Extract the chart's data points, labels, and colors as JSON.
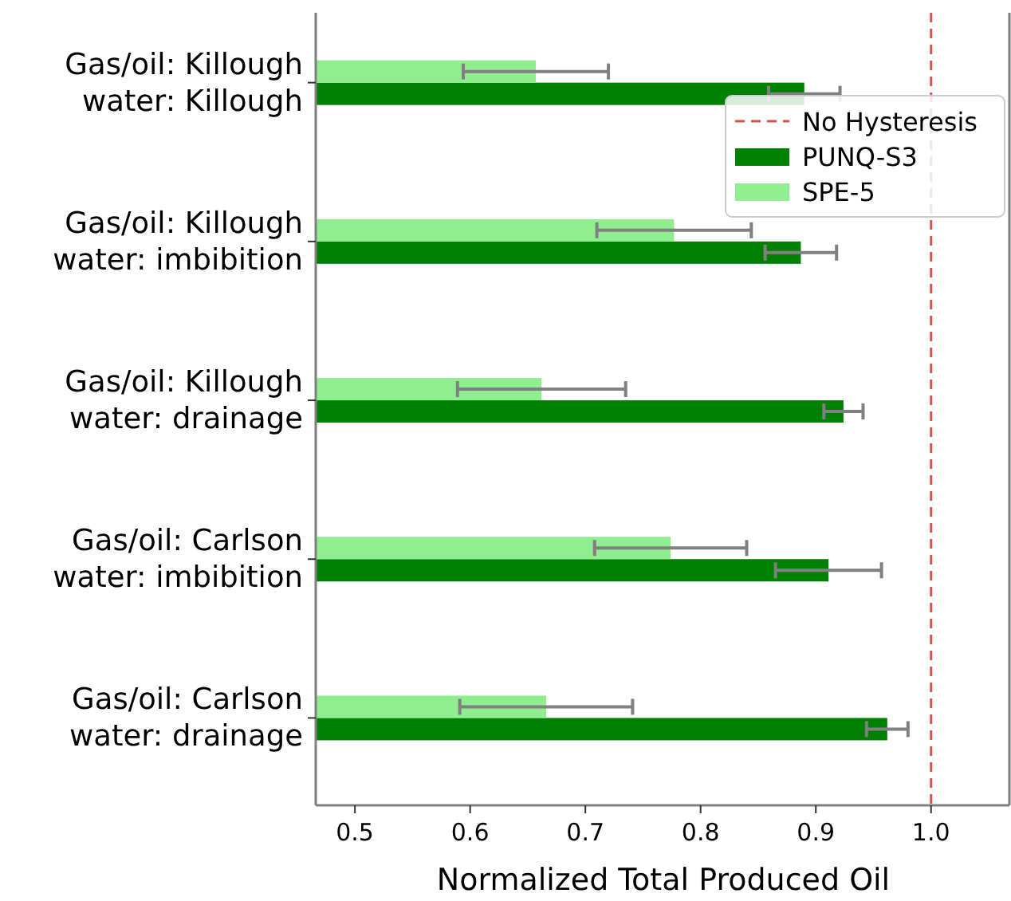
{
  "chart_data": {
    "type": "bar",
    "orientation": "horizontal",
    "xlabel": "Normalized Total Produced Oil",
    "categories": [
      "Gas/oil: Killough\nwater: Killough",
      "Gas/oil: Killough\nwater: imbibition",
      "Gas/oil: Killough\nwater: drainage",
      "Gas/oil: Carlson\nwater: imbibition",
      "Gas/oil: Carlson\nwater: drainage"
    ],
    "series": [
      {
        "name": "PUNQ-S3",
        "color": "#008000",
        "values": [
          0.89,
          0.887,
          0.924,
          0.911,
          0.962
        ],
        "errors": [
          0.031,
          0.031,
          0.017,
          0.046,
          0.018
        ]
      },
      {
        "name": "SPE-5",
        "color": "#90ee90",
        "values": [
          0.657,
          0.777,
          0.662,
          0.774,
          0.666
        ],
        "errors": [
          0.063,
          0.067,
          0.073,
          0.066,
          0.075
        ]
      }
    ],
    "xlim": [
      0.466,
      1.068
    ],
    "xticks": [
      0.5,
      0.6,
      0.7,
      0.8,
      0.9,
      {
        "value": 1.0,
        "label": "1.0"
      }
    ],
    "ref_lines": [
      {
        "axis": "x",
        "value": 1.0,
        "label": "No Hysteresis",
        "color": "#d9534f",
        "line_style": "dashed"
      }
    ],
    "legend": "top right",
    "grid": false
  }
}
